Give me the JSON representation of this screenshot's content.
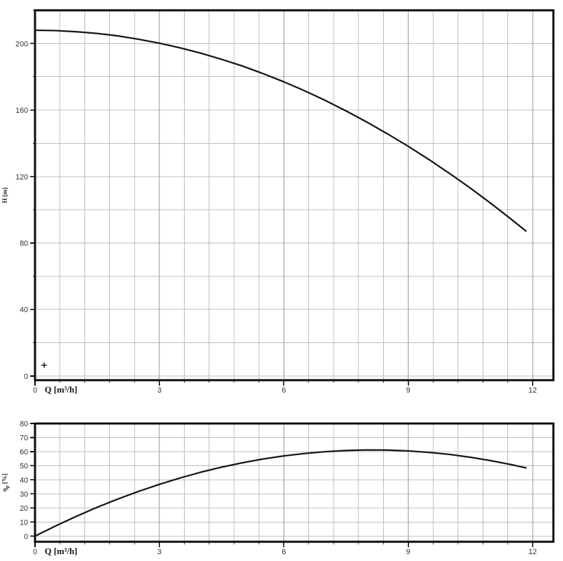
{
  "colors": {
    "background": "#ffffff",
    "frame": "#0a0a0a",
    "curve": "#161616",
    "grid_minor": "#bcbcbc",
    "grid_major": "#969696",
    "tick": "#000000",
    "tick_label": "#2e2e2e",
    "axis_title": "#1a1a1a"
  },
  "chart_data": [
    {
      "type": "line",
      "name": "pump-head-curve-chart",
      "xlabel": "Q [m³/h]",
      "ylabel": "H [m]",
      "xlim": [
        0,
        12.5
      ],
      "ylim": [
        -2.5,
        220
      ],
      "x_major_ticks": [
        0,
        3,
        6,
        9,
        12
      ],
      "x_minor_step": 0.6,
      "y_major_ticks": [
        0,
        40,
        80,
        120,
        160,
        200
      ],
      "y_minor_step": 20,
      "grid": "on",
      "legend": "none",
      "series": [
        {
          "name": "H-Q curve",
          "x": [
            0,
            0.5,
            1,
            1.5,
            2,
            2.5,
            3,
            3.5,
            4,
            4.5,
            5,
            5.5,
            6,
            6.5,
            7,
            7.5,
            8,
            8.5,
            9,
            9.5,
            10,
            10.5,
            11,
            11.5,
            11.85
          ],
          "y": [
            208,
            207.8,
            207.1,
            206.1,
            204.6,
            202.6,
            200.2,
            197.4,
            194.2,
            190.5,
            186.5,
            181.9,
            177,
            171.6,
            165.8,
            159.5,
            152.8,
            145.7,
            138.2,
            130.2,
            121.8,
            113,
            103.7,
            94,
            87
          ]
        }
      ],
      "annotations": [
        {
          "glyph": "+",
          "x": 0.22,
          "y": 6.5
        }
      ]
    },
    {
      "type": "line",
      "name": "pump-efficiency-curve-chart",
      "xlabel": "Q [m³/h]",
      "ylabel": "ηp [%]",
      "ylabel_parts": {
        "base": "η",
        "sub": "p",
        "unit": " [%]"
      },
      "xlim": [
        0,
        12.5
      ],
      "ylim": [
        -4,
        80
      ],
      "x_major_ticks": [
        0,
        3,
        6,
        9,
        12
      ],
      "x_minor_step": 0.6,
      "y_major_ticks": [
        0,
        10,
        20,
        30,
        40,
        50,
        60,
        70,
        80
      ],
      "y_minor_step": 10,
      "grid": "on",
      "legend": "none",
      "series": [
        {
          "name": "efficiency curve",
          "x": [
            0,
            0.5,
            1,
            1.5,
            2,
            2.5,
            3,
            3.5,
            4,
            4.5,
            5,
            5.5,
            6,
            6.5,
            7,
            7.5,
            8,
            8.5,
            9,
            9.5,
            10,
            10.5,
            11,
            11.5,
            11.85
          ],
          "y": [
            0,
            7.3,
            14.1,
            20.5,
            26.4,
            31.8,
            36.8,
            41.3,
            45.4,
            49,
            52.1,
            54.8,
            57,
            58.7,
            60,
            60.8,
            61.2,
            61.1,
            60.5,
            59.5,
            58,
            56,
            53.6,
            50.7,
            48.4
          ]
        }
      ],
      "annotations": []
    }
  ]
}
